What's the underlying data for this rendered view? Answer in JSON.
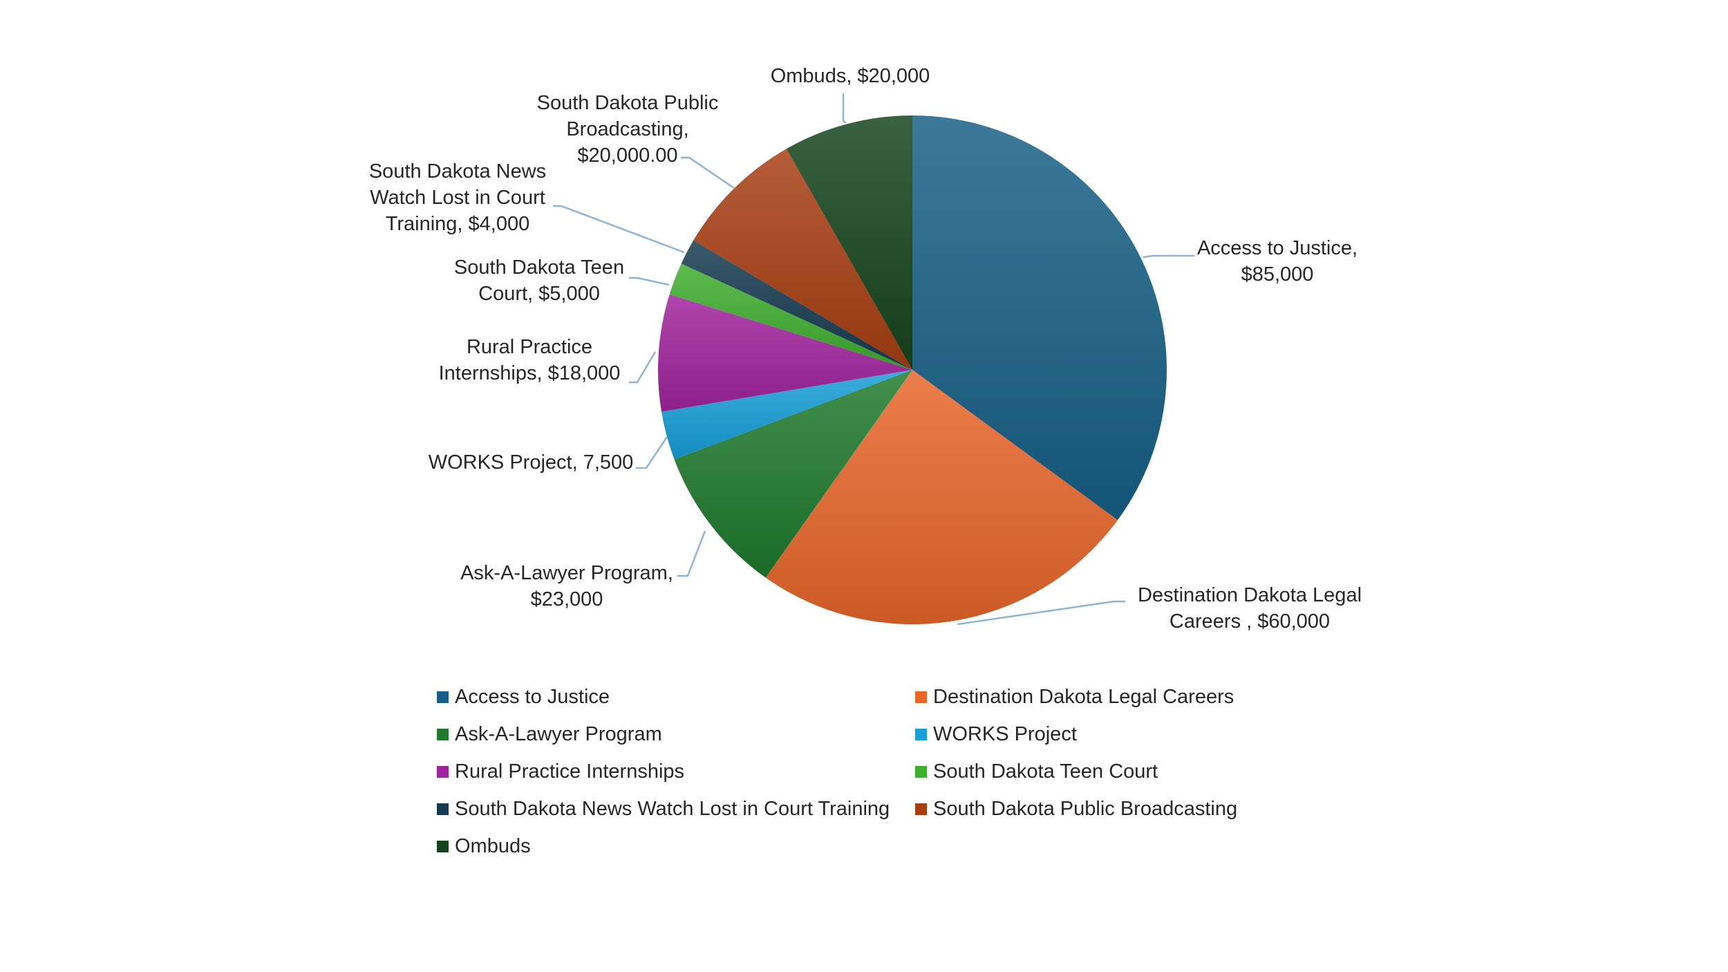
{
  "chart_data": {
    "type": "pie",
    "title": "",
    "slices": [
      {
        "name": "Access to Justice",
        "value": 85000,
        "label_lines": [
          "Access to Justice,",
          "$85,000"
        ],
        "color": "#175f86"
      },
      {
        "name": "Destination Dakota Legal Careers",
        "value": 60000,
        "label_lines": [
          "Destination Dakota Legal",
          "Careers , $60,000"
        ],
        "color": "#e8662a"
      },
      {
        "name": "Ask-A-Lawyer Program",
        "value": 23000,
        "label_lines": [
          "Ask-A-Lawyer Program,",
          "$23,000"
        ],
        "color": "#1e7a2c"
      },
      {
        "name": "WORKS Project",
        "value": 7500,
        "label_lines": [
          "WORKS Project, 7,500"
        ],
        "color": "#169fd8"
      },
      {
        "name": "Rural Practice Internships",
        "value": 18000,
        "label_lines": [
          "Rural Practice",
          "Internships, $18,000"
        ],
        "color": "#a0239d"
      },
      {
        "name": "South Dakota Teen Court",
        "value": 5000,
        "label_lines": [
          "South Dakota Teen",
          "Court, $5,000"
        ],
        "color": "#3fae2e"
      },
      {
        "name": "South Dakota News Watch Lost in Court Training",
        "value": 4000,
        "label_lines": [
          "South Dakota News",
          "Watch Lost in Court",
          "Training, $4,000"
        ],
        "color": "#163a50"
      },
      {
        "name": "South Dakota Public Broadcasting",
        "value": 20000,
        "label_lines": [
          "South Dakota Public",
          "Broadcasting,",
          "$20,000.00"
        ],
        "color": "#a83e12"
      },
      {
        "name": "Ombuds",
        "value": 20000,
        "label_lines": [
          "Ombuds, $20,000"
        ],
        "color": "#16441c"
      }
    ],
    "legend": {
      "position": "bottom",
      "items": [
        {
          "label": "Access to Justice",
          "color": "#175f86"
        },
        {
          "label": "Destination Dakota Legal Careers",
          "color": "#e8662a"
        },
        {
          "label": "Ask-A-Lawyer Program",
          "color": "#1e7a2c"
        },
        {
          "label": "WORKS Project",
          "color": "#169fd8"
        },
        {
          "label": "Rural Practice Internships",
          "color": "#a0239d"
        },
        {
          "label": "South Dakota Teen Court",
          "color": "#3fae2e"
        },
        {
          "label": "South Dakota News Watch Lost in Court Training",
          "color": "#163a50"
        },
        {
          "label": "South Dakota Public Broadcasting",
          "color": "#a83e12"
        },
        {
          "label": "Ombuds",
          "color": "#16441c"
        }
      ]
    },
    "leader_line_color": "#8eb4d4"
  }
}
